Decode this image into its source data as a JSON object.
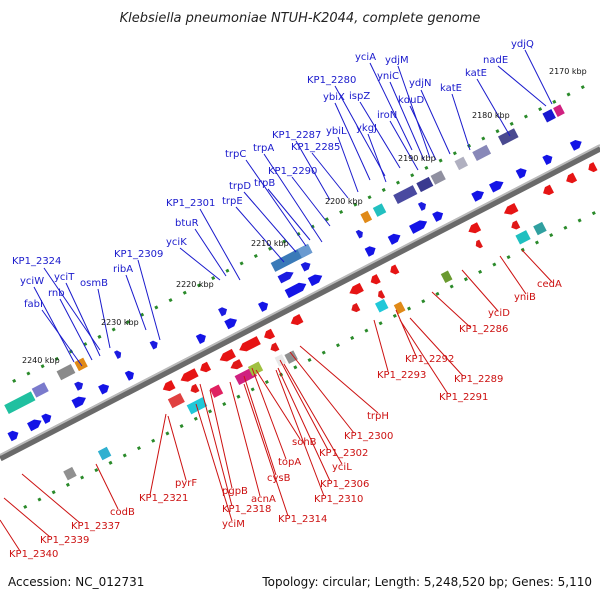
{
  "title": "Klebsiella pneumoniae NTUH-K2044, complete genome",
  "footer": {
    "accession": "Accession: NC_012731",
    "topology": "Topology: circular; Length: 5,248,520 bp; Genes: 5,110"
  },
  "colors": {
    "forward_label": "#1a1acc",
    "reverse_label": "#cc1111",
    "forward_arrow": "#1414e6",
    "reverse_arrow": "#e61414",
    "backbone": "#8a8a8a",
    "tick": "#2a8a2a"
  },
  "kbp_labels": [
    "2170 kbp",
    "2180 kbp",
    "2190 kbp",
    "2200 kbp",
    "2210 kbp",
    "2220 kbp",
    "2230 kbp",
    "2240 kbp"
  ],
  "forward_genes": [
    "ydjQ",
    "nadE",
    "yciA",
    "ydjM",
    "yniC",
    "katE",
    "KP1_2280",
    "ydjN",
    "katE",
    "ybiX",
    "ispZ",
    "kduD",
    "iroN",
    "ybiL",
    "ykgJ",
    "KP1_2287",
    "KP1_2285",
    "trpC",
    "trpA",
    "KP1_2290",
    "trpD",
    "trpB",
    "trpE",
    "KP1_2301",
    "btuR",
    "yciK",
    "KP1_2324",
    "KP1_2309",
    "yciW",
    "yciT",
    "ribA",
    "rnb",
    "osmB",
    "fabI"
  ],
  "reverse_genes": [
    "cedA",
    "yniB",
    "yciD",
    "KP1_2286",
    "KP1_2292",
    "KP1_2289",
    "KP1_2293",
    "KP1_2291",
    "trpH",
    "KP1_2300",
    "sohB",
    "KP1_2302",
    "topA",
    "yciL",
    "cysB",
    "KP1_2306",
    "KP1_2310",
    "acnA",
    "pgpB",
    "KP1_2314",
    "KP1_2318",
    "pyrF",
    "yciM",
    "KP1_2321",
    "codB",
    "KP1_2337",
    "KP1_2339",
    "KP1_2340"
  ]
}
